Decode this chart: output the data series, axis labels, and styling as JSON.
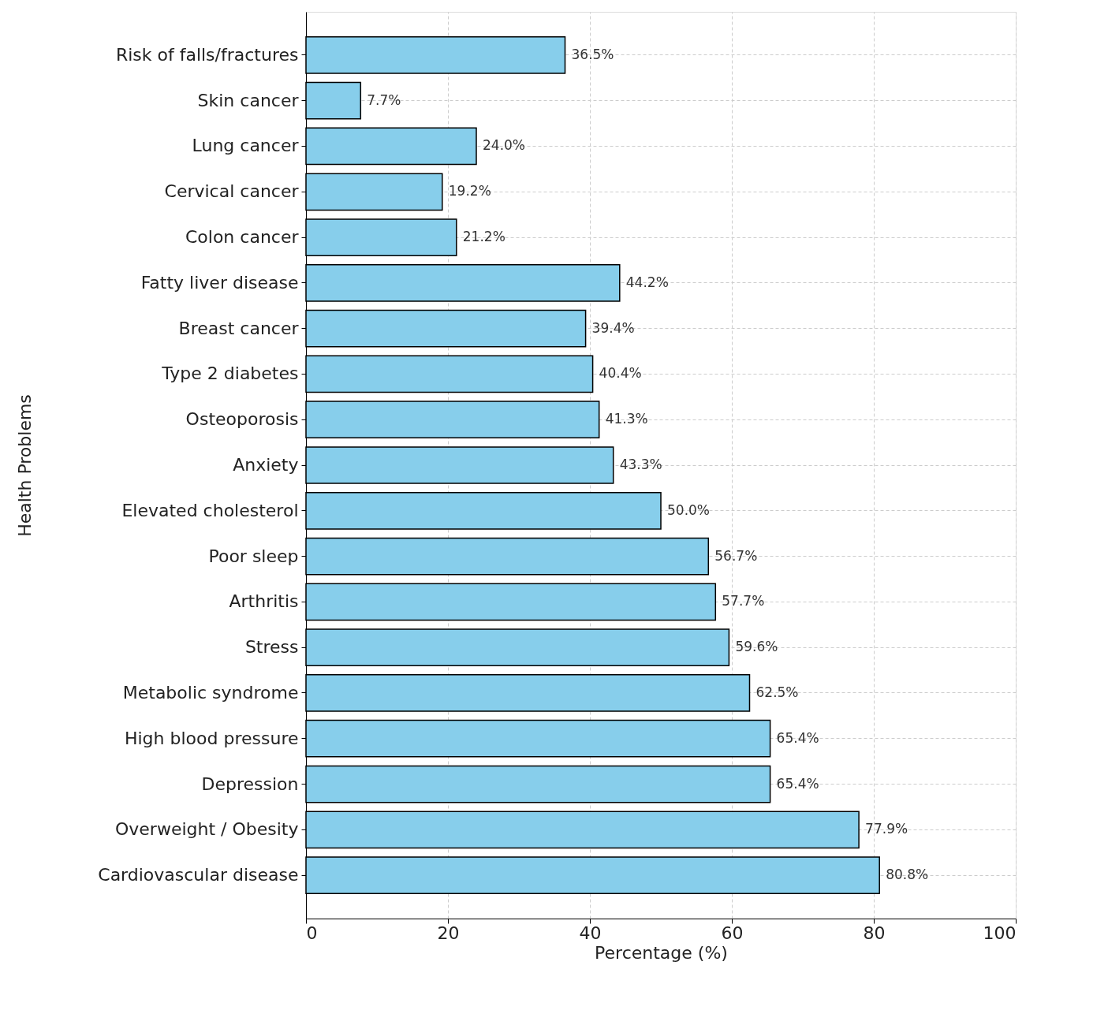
{
  "chart_data": {
    "type": "bar",
    "orientation": "horizontal",
    "xlabel": "Percentage (%)",
    "ylabel": "Health Problems",
    "categories": [
      "Risk of falls/fractures",
      "Skin cancer",
      "Lung cancer",
      "Cervical cancer",
      "Colon cancer",
      "Fatty liver disease",
      "Breast cancer",
      "Type 2 diabetes",
      "Osteoporosis",
      "Anxiety",
      "Elevated cholesterol",
      "Poor sleep",
      "Arthritis",
      "Stress",
      "Metabolic syndrome",
      "High blood pressure",
      "Depression",
      "Overweight / Obesity",
      "Cardiovascular disease"
    ],
    "values": [
      36.5,
      7.7,
      24.0,
      19.2,
      21.2,
      44.2,
      39.4,
      40.4,
      41.3,
      43.3,
      50.0,
      56.7,
      57.7,
      59.6,
      62.5,
      65.4,
      65.4,
      77.9,
      80.8
    ],
    "value_labels": [
      "36.5%",
      "7.7%",
      "24.0%",
      "19.2%",
      "21.2%",
      "44.2%",
      "39.4%",
      "40.4%",
      "41.3%",
      "43.3%",
      "50.0%",
      "56.7%",
      "57.7%",
      "59.6%",
      "62.5%",
      "65.4%",
      "65.4%",
      "77.9%",
      "80.8%"
    ],
    "color": "#87ceeb",
    "xlim": [
      0,
      100
    ],
    "xticks": [
      0,
      20,
      40,
      60,
      80,
      100
    ],
    "grid": true
  }
}
